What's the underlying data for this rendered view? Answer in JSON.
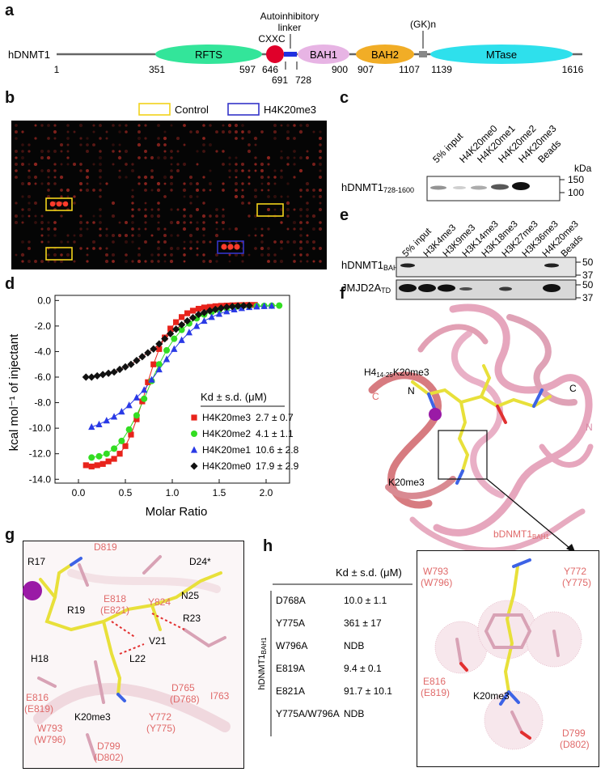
{
  "panels": {
    "a": "a",
    "b": "b",
    "c": "c",
    "d": "d",
    "e": "e",
    "f": "f",
    "g": "g",
    "h": "h"
  },
  "panel_a": {
    "protein": "hDNMT1",
    "domains": [
      {
        "name": "RFTS",
        "color": "#33e59a"
      },
      {
        "name": "BAH1",
        "color": "#e7b4e4"
      },
      {
        "name": "BAH2",
        "color": "#f1ad26"
      },
      {
        "name": "MTase",
        "color": "#2ee0ec"
      }
    ],
    "cxxc_label": "CXXC",
    "autoinhibitory_label": "Autoinhibitory\nlinker",
    "autoinhibitory_line1": "Autoinhibitory",
    "autoinhibitory_line2": "linker",
    "gk_label": "(GK)n",
    "positions": [
      "1",
      "351",
      "597",
      "646",
      "691",
      "728",
      "900",
      "907",
      "1107",
      "1139",
      "1616"
    ]
  },
  "panel_b": {
    "legend": [
      {
        "label": "Control",
        "color": "#f2d21a"
      },
      {
        "label": "H4K20me3",
        "color": "#3434c8"
      }
    ]
  },
  "panel_c": {
    "lanes": [
      "5% input",
      "H4K20me0",
      "H4K20me1",
      "H4K20me2",
      "H4K20me3",
      "Beads"
    ],
    "row_label_main": "hDNMT1",
    "row_label_sub": "728-1600",
    "kda_label": "kDa",
    "markers": [
      "150",
      "100"
    ]
  },
  "panel_d": {
    "chart_data": {
      "type": "scatter",
      "title": "",
      "xlabel": "Molar Ratio",
      "ylabel": "kcal mol⁻¹ of injectant",
      "xlim": [
        -0.25,
        2.25
      ],
      "ylim": [
        -14.3,
        0.4
      ],
      "x_ticks": [
        "0.0",
        "0.5",
        "1.0",
        "1.5",
        "2.0"
      ],
      "y_ticks": [
        "0.0",
        "-2.0",
        "-4.0",
        "-6.0",
        "-8.0",
        "-10.0",
        "-12.0",
        "-14.0"
      ],
      "legend_header": "Kd ± s.d. (μM)",
      "series": [
        {
          "name": "H4K20me3",
          "kd": "2.7 ± 0.7",
          "color": "#e8231b",
          "marker": "square",
          "x": [
            0.08,
            0.14,
            0.2,
            0.26,
            0.32,
            0.38,
            0.44,
            0.5,
            0.56,
            0.62,
            0.68,
            0.74,
            0.8,
            0.86,
            0.92,
            0.98,
            1.04,
            1.1,
            1.16,
            1.22,
            1.28,
            1.34,
            1.4,
            1.46,
            1.52,
            1.58,
            1.64,
            1.7,
            1.76,
            1.82,
            1.88
          ],
          "y": [
            -12.9,
            -13.0,
            -12.9,
            -12.8,
            -12.6,
            -12.4,
            -12.0,
            -11.4,
            -10.5,
            -9.3,
            -7.9,
            -6.4,
            -5.0,
            -3.8,
            -2.9,
            -2.2,
            -1.7,
            -1.3,
            -1.0,
            -0.8,
            -0.65,
            -0.55,
            -0.5,
            -0.45,
            -0.42,
            -0.4,
            -0.38,
            -0.37,
            -0.36,
            -0.35,
            -0.35
          ]
        },
        {
          "name": "H4K20me2",
          "kd": "4.1 ± 1.1",
          "color": "#33dd22",
          "marker": "circle",
          "x": [
            0.14,
            0.22,
            0.3,
            0.38,
            0.46,
            0.54,
            0.62,
            0.7,
            0.78,
            0.86,
            0.94,
            1.02,
            1.1,
            1.18,
            1.26,
            1.34,
            1.42,
            1.5,
            1.58,
            1.66,
            1.74,
            1.82,
            1.9,
            1.98,
            2.06,
            2.14
          ],
          "y": [
            -12.3,
            -12.2,
            -12.0,
            -11.6,
            -11.0,
            -10.1,
            -9.0,
            -7.7,
            -6.3,
            -5.0,
            -3.9,
            -3.0,
            -2.3,
            -1.8,
            -1.4,
            -1.1,
            -0.9,
            -0.75,
            -0.62,
            -0.55,
            -0.5,
            -0.46,
            -0.44,
            -0.42,
            -0.41,
            -0.4
          ]
        },
        {
          "name": "H4K20me1",
          "kd": "10.6 ± 2.8",
          "color": "#2a3ae6",
          "marker": "triangle",
          "x": [
            0.14,
            0.22,
            0.3,
            0.38,
            0.46,
            0.54,
            0.62,
            0.7,
            0.78,
            0.86,
            0.94,
            1.02,
            1.1,
            1.18,
            1.26,
            1.34,
            1.42,
            1.5,
            1.58,
            1.66,
            1.74,
            1.82,
            1.9,
            1.98,
            2.06
          ],
          "y": [
            -9.9,
            -9.7,
            -9.4,
            -9.1,
            -8.7,
            -8.2,
            -7.6,
            -7.0,
            -6.2,
            -5.4,
            -4.6,
            -3.8,
            -3.1,
            -2.5,
            -2.0,
            -1.6,
            -1.3,
            -1.05,
            -0.85,
            -0.7,
            -0.6,
            -0.52,
            -0.47,
            -0.44,
            -0.42
          ]
        },
        {
          "name": "H4K20me0",
          "kd": "17.9 ± 2.9",
          "color": "#111111",
          "marker": "diamond",
          "x": [
            0.08,
            0.14,
            0.2,
            0.26,
            0.32,
            0.38,
            0.44,
            0.5,
            0.56,
            0.62,
            0.68,
            0.74,
            0.8,
            0.86,
            0.92,
            0.98,
            1.04,
            1.1,
            1.16,
            1.22,
            1.28,
            1.34,
            1.4,
            1.46,
            1.52,
            1.58,
            1.64,
            1.7,
            1.76,
            1.82
          ],
          "y": [
            -6.0,
            -6.0,
            -5.9,
            -5.8,
            -5.7,
            -5.6,
            -5.4,
            -5.2,
            -5.0,
            -4.7,
            -4.4,
            -4.1,
            -3.8,
            -3.4,
            -3.0,
            -2.6,
            -2.25,
            -1.9,
            -1.6,
            -1.35,
            -1.1,
            -0.95,
            -0.8,
            -0.7,
            -0.6,
            -0.52,
            -0.47,
            -0.43,
            -0.41,
            -0.4
          ]
        }
      ]
    }
  },
  "panel_e": {
    "lanes": [
      "5% input",
      "H3K4me3",
      "H3K9me3",
      "H3K14me3",
      "H3K18me3",
      "H3K27me3",
      "H3K36me3",
      "H4K20me3",
      "Beads"
    ],
    "row1_main": "hDNMT1",
    "row1_sub": "BAH1",
    "row2_main": "JMJD2A",
    "row2_sub": "TD",
    "row1_markers": [
      "50",
      "37"
    ],
    "row2_markers": [
      "50",
      "37"
    ]
  },
  "panel_f": {
    "peptide_main": "H4",
    "peptide_sub": "14-25",
    "peptide_tail": "K20me3",
    "n_left": "N",
    "c_right": "C",
    "c_left": "C",
    "n_right": "N",
    "k20": "K20me3",
    "protein_main": "bDNMT1",
    "protein_sub": "BAH1",
    "zoom_residues": [
      {
        "main": "W793",
        "alt": "(W796)"
      },
      {
        "main": "Y772",
        "alt": "(Y775)"
      },
      {
        "main": "E816",
        "alt": "(E819)"
      },
      {
        "main": "D799",
        "alt": "(D802)"
      }
    ],
    "zoom_k20": "K20me3"
  },
  "panel_g": {
    "peptide_labels": [
      "R17",
      "R19",
      "D24*",
      "N25",
      "R23",
      "V21",
      "L22",
      "H18",
      "K20me3"
    ],
    "protein_labels": [
      {
        "main": "D819",
        "alt": ""
      },
      {
        "main": "E818",
        "alt": "(E821)"
      },
      {
        "main": "Y824",
        "alt": ""
      },
      {
        "main": "D765",
        "alt": "(D768)"
      },
      {
        "main": "I763",
        "alt": ""
      },
      {
        "main": "E816",
        "alt": "(E819)"
      },
      {
        "main": "Y772",
        "alt": "(Y775)"
      },
      {
        "main": "W793",
        "alt": "(W796)"
      },
      {
        "main": "D799",
        "alt": "(D802)"
      }
    ]
  },
  "panel_h": {
    "header": "Kd ± s.d. (μM)",
    "side_main": "hDNMT1",
    "side_sub": "BAH1",
    "rows": [
      {
        "mutant": "D768A",
        "kd": "10.0 ± 1.1"
      },
      {
        "mutant": "Y775A",
        "kd": "361 ± 17"
      },
      {
        "mutant": "W796A",
        "kd": "NDB"
      },
      {
        "mutant": "E819A",
        "kd": "9.4 ± 0.1"
      },
      {
        "mutant": "E821A",
        "kd": "91.7 ± 10.1"
      },
      {
        "mutant": "Y775A/W796A",
        "kd": "NDB"
      }
    ]
  }
}
